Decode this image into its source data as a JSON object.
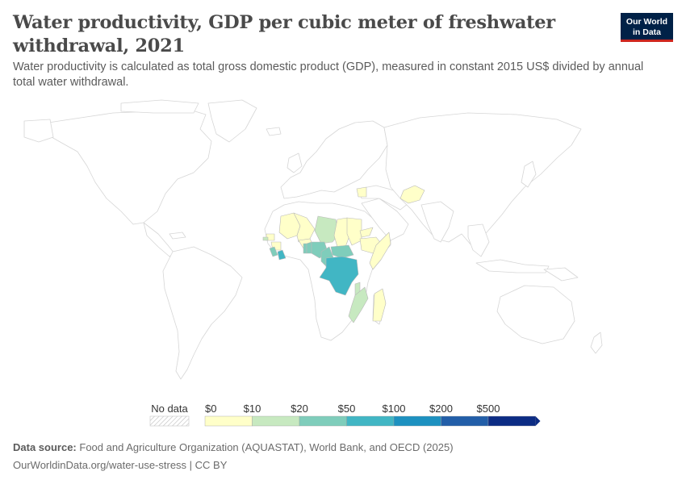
{
  "title": "Water productivity, GDP per cubic meter of freshwater withdrawal, 2021",
  "subtitle": "Water productivity is calculated as total gross domestic product (GDP), measured in constant 2015 US$ divided by annual total water withdrawal.",
  "logo": {
    "line1": "Our World",
    "line2": "in Data"
  },
  "source": {
    "label": "Data source:",
    "text": "Food and Agriculture Organization (AQUASTAT), World Bank, and OECD (2025)"
  },
  "url": "OurWorldinData.org/water-use-stress | CC BY",
  "colors": {
    "land": "#ffffff",
    "border": "#d6d6d6",
    "bins": [
      "#ffffc9",
      "#c7e9c0",
      "#7fcdbb",
      "#41b6c4",
      "#1d91c0",
      "#225ea8",
      "#0c2c84"
    ]
  },
  "chart_data": {
    "type": "choropleth-map",
    "year": 2021,
    "unit": "constant 2015 US$ per cubic meter",
    "legend": {
      "no_data_label": "No data",
      "bin_edges": [
        "$0",
        "$10",
        "$20",
        "$50",
        "$100",
        "$200",
        "$500"
      ]
    },
    "countries": [
      {
        "name": "Mauritania",
        "bin": 0
      },
      {
        "name": "Mali",
        "bin": 0
      },
      {
        "name": "Niger",
        "bin": 1
      },
      {
        "name": "Chad",
        "bin": 0
      },
      {
        "name": "Sudan",
        "bin": 0
      },
      {
        "name": "Senegal",
        "bin": 0
      },
      {
        "name": "Gambia",
        "bin": 1
      },
      {
        "name": "Burkina Faso",
        "bin": 0
      },
      {
        "name": "Guinea",
        "bin": 0
      },
      {
        "name": "Sierra Leone",
        "bin": 2
      },
      {
        "name": "Liberia",
        "bin": 3
      },
      {
        "name": "Togo",
        "bin": 2
      },
      {
        "name": "Benin",
        "bin": 2
      },
      {
        "name": "Nigeria",
        "bin": 2
      },
      {
        "name": "Cameroon",
        "bin": 2
      },
      {
        "name": "Central African Republic",
        "bin": 2
      },
      {
        "name": "Democratic Republic of Congo",
        "bin": 3
      },
      {
        "name": "Ethiopia",
        "bin": 0
      },
      {
        "name": "Somalia",
        "bin": 0
      },
      {
        "name": "Eritrea",
        "bin": 0
      },
      {
        "name": "Malawi",
        "bin": 1
      },
      {
        "name": "Mozambique",
        "bin": 1
      },
      {
        "name": "Madagascar",
        "bin": 0
      },
      {
        "name": "Afghanistan",
        "bin": 0
      },
      {
        "name": "Syria",
        "bin": 0
      }
    ]
  }
}
